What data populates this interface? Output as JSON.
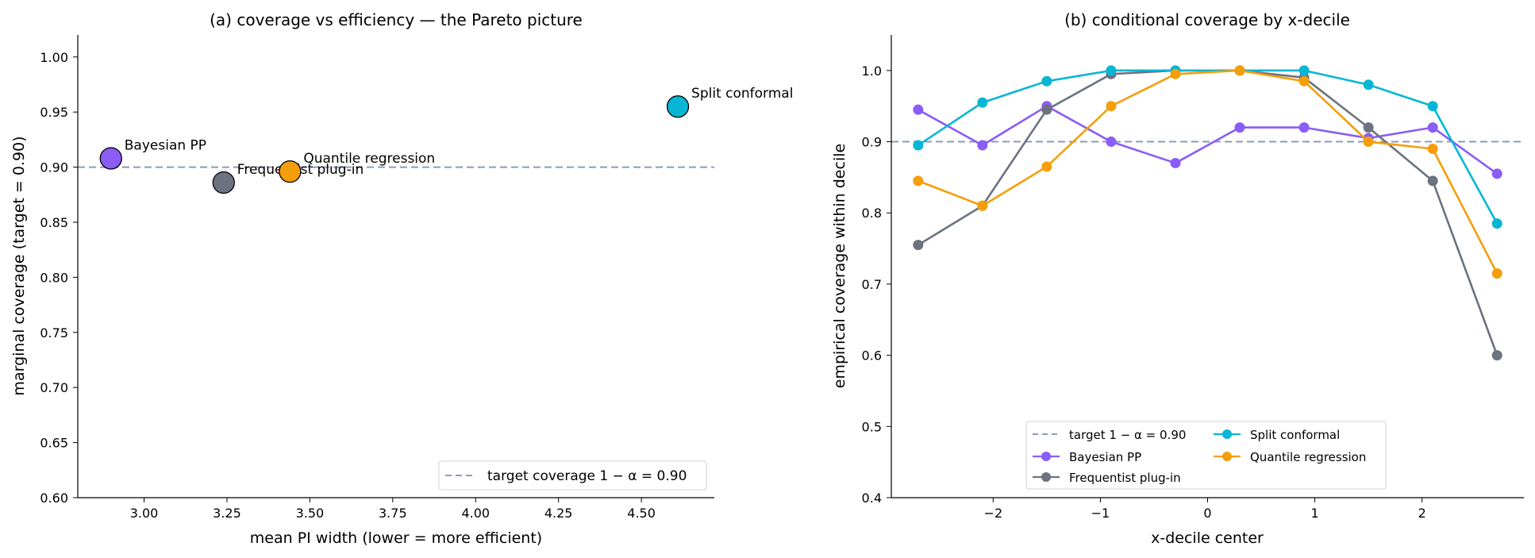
{
  "chart_data": [
    {
      "type": "scatter",
      "title": "(a) coverage vs efficiency — the Pareto picture",
      "xlabel": "mean PI width (lower = more efficient)",
      "ylabel": "marginal coverage (target = 0.90)",
      "xlim": [
        2.8,
        4.72
      ],
      "ylim": [
        0.6,
        1.02
      ],
      "xticks": [
        "3.00",
        "3.25",
        "3.50",
        "3.75",
        "4.00",
        "4.25",
        "4.50"
      ],
      "yticks": [
        "0.60",
        "0.65",
        "0.70",
        "0.75",
        "0.80",
        "0.85",
        "0.90",
        "0.95",
        "1.00"
      ],
      "target": 0.9,
      "legend": {
        "location": "lower right",
        "entries": [
          "target coverage 1 − α = 0.90"
        ]
      },
      "grid": false,
      "points": [
        {
          "name": "Bayesian PP",
          "x": 2.9,
          "y": 0.908,
          "color": "#8b5cf6"
        },
        {
          "name": "Frequentist plug-in",
          "x": 3.24,
          "y": 0.886,
          "color": "#6b7280"
        },
        {
          "name": "Quantile regression",
          "x": 3.44,
          "y": 0.896,
          "color": "#f59e0b"
        },
        {
          "name": "Split conformal",
          "x": 4.61,
          "y": 0.955,
          "color": "#06b6d4"
        }
      ]
    },
    {
      "type": "line",
      "title": "(b) conditional coverage by x-decile",
      "xlabel": "x-decile center",
      "ylabel": "empirical coverage within decile",
      "xlim": [
        -2.95,
        2.95
      ],
      "ylim": [
        0.4,
        1.05
      ],
      "xticks": [
        "−2",
        "−1",
        "0",
        "1",
        "2"
      ],
      "yticks": [
        "0.4",
        "0.5",
        "0.6",
        "0.7",
        "0.8",
        "0.9",
        "1.0"
      ],
      "target": 0.9,
      "legend": {
        "location": "lower center",
        "entries": [
          "target 1 − α = 0.90",
          "Bayesian PP",
          "Frequentist plug-in",
          "Split conformal",
          "Quantile regression"
        ]
      },
      "grid": false,
      "x": [
        -2.7,
        -2.1,
        -1.5,
        -0.9,
        -0.3,
        0.3,
        0.9,
        1.5,
        2.1,
        2.7
      ],
      "series": [
        {
          "name": "Bayesian PP",
          "color": "#8b5cf6",
          "values": [
            0.945,
            0.895,
            0.95,
            0.9,
            0.87,
            0.92,
            0.92,
            0.905,
            0.92,
            0.855
          ]
        },
        {
          "name": "Frequentist plug-in",
          "color": "#6b7280",
          "values": [
            0.755,
            0.81,
            0.945,
            0.995,
            1.0,
            1.0,
            0.99,
            0.92,
            0.845,
            0.6
          ]
        },
        {
          "name": "Split conformal",
          "color": "#06b6d4",
          "values": [
            0.895,
            0.955,
            0.985,
            1.0,
            1.0,
            1.0,
            1.0,
            0.98,
            0.95,
            0.785
          ]
        },
        {
          "name": "Quantile regression",
          "color": "#f59e0b",
          "values": [
            0.845,
            0.81,
            0.865,
            0.95,
            0.995,
            1.0,
            0.985,
            0.9,
            0.89,
            0.715
          ]
        }
      ]
    }
  ],
  "colors": {
    "target_line": "#8c9bb5",
    "axis": "#000000"
  }
}
